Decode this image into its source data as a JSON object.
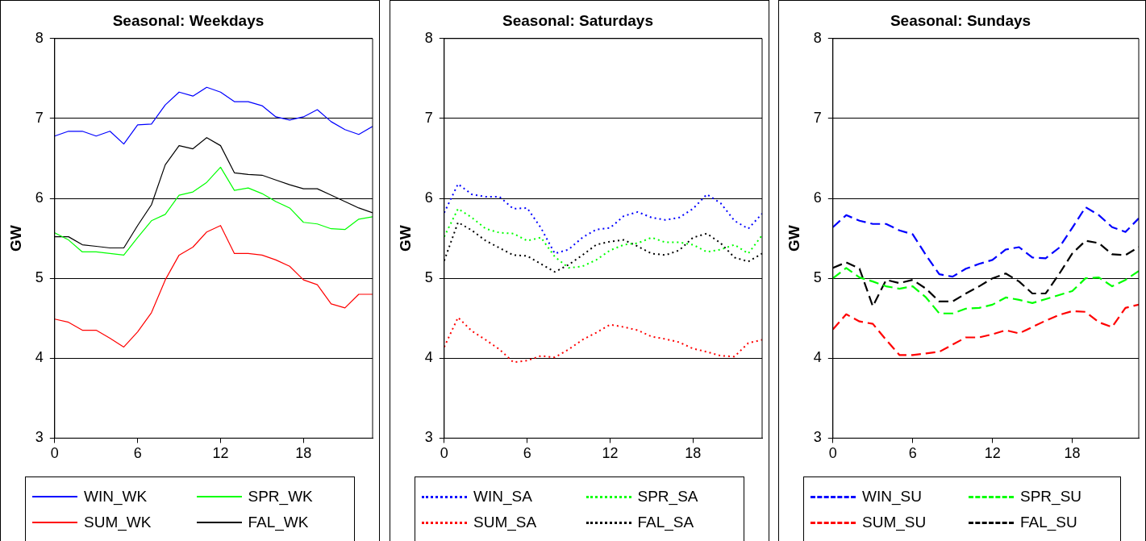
{
  "chart_data": [
    {
      "type": "line",
      "title": "Seasonal: Weekdays",
      "ylabel": "GW",
      "x": [
        0,
        1,
        2,
        3,
        4,
        5,
        6,
        7,
        8,
        9,
        10,
        11,
        12,
        13,
        14,
        15,
        16,
        17,
        18,
        19,
        20,
        21,
        22,
        23
      ],
      "xlim": [
        0,
        23
      ],
      "xticks": [
        0,
        6,
        12,
        18
      ],
      "ylim": [
        3,
        8
      ],
      "yticks": [
        3,
        4,
        5,
        6,
        7,
        8
      ],
      "grid": "y",
      "legend": "bottom",
      "line_style": "solid",
      "marker": "none",
      "series": [
        {
          "name": "WIN_WK",
          "color": "#0000ff",
          "values": [
            6.78,
            6.84,
            6.84,
            6.78,
            6.84,
            6.68,
            6.92,
            6.93,
            7.17,
            7.33,
            7.28,
            7.39,
            7.33,
            7.21,
            7.21,
            7.16,
            7.02,
            6.98,
            7.02,
            7.11,
            6.96,
            6.86,
            6.8,
            6.9
          ]
        },
        {
          "name": "SPR_WK",
          "color": "#00ff00",
          "values": [
            5.57,
            5.48,
            5.33,
            5.33,
            5.31,
            5.29,
            5.51,
            5.72,
            5.8,
            6.04,
            6.08,
            6.2,
            6.39,
            6.1,
            6.13,
            6.06,
            5.96,
            5.88,
            5.7,
            5.68,
            5.62,
            5.61,
            5.74,
            5.77
          ]
        },
        {
          "name": "SUM_WK",
          "color": "#ff0000",
          "values": [
            4.49,
            4.45,
            4.35,
            4.35,
            4.25,
            4.14,
            4.33,
            4.57,
            4.98,
            5.29,
            5.39,
            5.58,
            5.66,
            5.31,
            5.31,
            5.29,
            5.23,
            5.15,
            4.98,
            4.92,
            4.68,
            4.63,
            4.8,
            4.8
          ]
        },
        {
          "name": "FAL_WK",
          "color": "#000000",
          "values": [
            5.52,
            5.52,
            5.42,
            5.4,
            5.38,
            5.38,
            5.66,
            5.92,
            6.42,
            6.66,
            6.62,
            6.76,
            6.66,
            6.32,
            6.3,
            6.29,
            6.23,
            6.17,
            6.12,
            6.12,
            6.04,
            5.96,
            5.88,
            5.82
          ]
        }
      ]
    },
    {
      "type": "line",
      "title": "Seasonal: Saturdays",
      "ylabel": "GW",
      "x": [
        0,
        1,
        2,
        3,
        4,
        5,
        6,
        7,
        8,
        9,
        10,
        11,
        12,
        13,
        14,
        15,
        16,
        17,
        18,
        19,
        20,
        21,
        22,
        23
      ],
      "xlim": [
        0,
        23
      ],
      "xticks": [
        0,
        6,
        12,
        18
      ],
      "ylim": [
        3,
        8
      ],
      "yticks": [
        3,
        4,
        5,
        6,
        7,
        8
      ],
      "grid": "y",
      "legend": "bottom",
      "line_style": "dotted",
      "marker": "none",
      "series": [
        {
          "name": "WIN_SA",
          "color": "#0000ff",
          "values": [
            5.82,
            6.18,
            6.05,
            6.02,
            6.02,
            5.87,
            5.88,
            5.63,
            5.31,
            5.36,
            5.51,
            5.61,
            5.63,
            5.78,
            5.83,
            5.76,
            5.73,
            5.76,
            5.87,
            6.05,
            5.94,
            5.72,
            5.62,
            5.81
          ]
        },
        {
          "name": "SPR_SA",
          "color": "#00ff00",
          "values": [
            5.52,
            5.87,
            5.76,
            5.62,
            5.57,
            5.56,
            5.47,
            5.51,
            5.27,
            5.13,
            5.15,
            5.23,
            5.35,
            5.42,
            5.44,
            5.51,
            5.45,
            5.45,
            5.42,
            5.33,
            5.36,
            5.42,
            5.31,
            5.54
          ]
        },
        {
          "name": "SUM_SA",
          "color": "#ff0000",
          "values": [
            4.14,
            4.51,
            4.34,
            4.23,
            4.11,
            3.95,
            3.97,
            4.03,
            4.01,
            4.11,
            4.23,
            4.32,
            4.42,
            4.39,
            4.35,
            4.27,
            4.24,
            4.2,
            4.12,
            4.08,
            4.03,
            4.02,
            4.19,
            4.23
          ]
        },
        {
          "name": "FAL_SA",
          "color": "#000000",
          "values": [
            5.22,
            5.7,
            5.6,
            5.47,
            5.38,
            5.29,
            5.28,
            5.18,
            5.08,
            5.17,
            5.29,
            5.42,
            5.46,
            5.48,
            5.4,
            5.31,
            5.29,
            5.35,
            5.51,
            5.56,
            5.44,
            5.26,
            5.21,
            5.31
          ]
        }
      ]
    },
    {
      "type": "line",
      "title": "Seasonal: Sundays",
      "ylabel": "GW",
      "x": [
        0,
        1,
        2,
        3,
        4,
        5,
        6,
        7,
        8,
        9,
        10,
        11,
        12,
        13,
        14,
        15,
        16,
        17,
        18,
        19,
        20,
        21,
        22,
        23
      ],
      "xlim": [
        0,
        23
      ],
      "xticks": [
        0,
        6,
        12,
        18
      ],
      "ylim": [
        3,
        8
      ],
      "yticks": [
        3,
        4,
        5,
        6,
        7,
        8
      ],
      "grid": "y",
      "legend": "bottom",
      "line_style": "dashed",
      "marker": "none",
      "series": [
        {
          "name": "WIN_SU",
          "color": "#0000ff",
          "values": [
            5.64,
            5.79,
            5.72,
            5.68,
            5.68,
            5.6,
            5.55,
            5.29,
            5.05,
            5.02,
            5.12,
            5.18,
            5.23,
            5.36,
            5.39,
            5.26,
            5.25,
            5.38,
            5.63,
            5.89,
            5.79,
            5.64,
            5.58,
            5.75
          ]
        },
        {
          "name": "SPR_SU",
          "color": "#00ff00",
          "values": [
            5.0,
            5.13,
            5.01,
            4.96,
            4.9,
            4.87,
            4.9,
            4.76,
            4.56,
            4.56,
            4.62,
            4.63,
            4.67,
            4.76,
            4.73,
            4.69,
            4.74,
            4.79,
            4.84,
            5.0,
            5.01,
            4.9,
            4.98,
            5.09
          ]
        },
        {
          "name": "SUM_SU",
          "color": "#ff0000",
          "values": [
            4.36,
            4.55,
            4.46,
            4.43,
            4.23,
            4.04,
            4.04,
            4.06,
            4.08,
            4.17,
            4.26,
            4.26,
            4.3,
            4.35,
            4.31,
            4.39,
            4.47,
            4.54,
            4.59,
            4.58,
            4.45,
            4.39,
            4.63,
            4.67
          ]
        },
        {
          "name": "FAL_SU",
          "color": "#000000",
          "values": [
            5.13,
            5.2,
            5.12,
            4.65,
            4.98,
            4.94,
            4.98,
            4.87,
            4.71,
            4.71,
            4.81,
            4.9,
            5.0,
            5.06,
            4.96,
            4.81,
            4.81,
            5.05,
            5.31,
            5.47,
            5.44,
            5.3,
            5.29,
            5.39
          ]
        }
      ]
    }
  ]
}
